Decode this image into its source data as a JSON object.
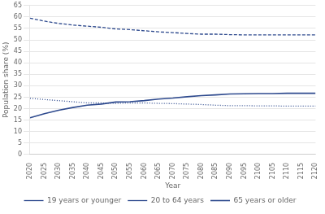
{
  "chart_data": {
    "type": "line",
    "xlabel": "Year",
    "ylabel": "Population share (%)",
    "x": [
      2020,
      2025,
      2030,
      2035,
      2040,
      2045,
      2050,
      2055,
      2060,
      2065,
      2070,
      2075,
      2080,
      2085,
      2090,
      2095,
      2100,
      2105,
      2110,
      2115,
      2120
    ],
    "series": [
      {
        "name": "19 years or younger",
        "color": "#2e4a8e",
        "line_style": "dotted",
        "values": [
          24.5,
          24.0,
          23.5,
          23.0,
          22.5,
          22.5,
          22.3,
          22.5,
          22.5,
          22.3,
          22.2,
          22.0,
          21.8,
          21.5,
          21.3,
          21.3,
          21.2,
          21.2,
          21.1,
          21.1,
          21.1
        ]
      },
      {
        "name": "20 to 64 years",
        "color": "#2e4a8e",
        "line_style": "dashed",
        "values": [
          59.5,
          58.2,
          57.2,
          56.5,
          56.0,
          55.5,
          54.8,
          54.5,
          54.0,
          53.5,
          53.2,
          52.8,
          52.5,
          52.5,
          52.3,
          52.2,
          52.2,
          52.2,
          52.2,
          52.2,
          52.2
        ]
      },
      {
        "name": "65 years or older",
        "color": "#2e4a8e",
        "line_style": "solid",
        "values": [
          16.0,
          17.8,
          19.3,
          20.5,
          21.5,
          22.0,
          22.9,
          23.0,
          23.5,
          24.2,
          24.6,
          25.2,
          25.7,
          26.0,
          26.4,
          26.5,
          26.6,
          26.6,
          26.7,
          26.7,
          26.7
        ]
      }
    ],
    "xlim": [
      2020,
      2120
    ],
    "xticks": [
      2020,
      2025,
      2030,
      2035,
      2040,
      2045,
      2050,
      2055,
      2060,
      2065,
      2070,
      2075,
      2080,
      2085,
      2090,
      2095,
      2100,
      2105,
      2110,
      2115,
      2120
    ],
    "ylim": [
      0,
      65
    ],
    "yticks": [
      0,
      5,
      10,
      15,
      20,
      25,
      30,
      35,
      40,
      45,
      50,
      55,
      60,
      65
    ],
    "grid": "y",
    "legend": "bottom"
  }
}
